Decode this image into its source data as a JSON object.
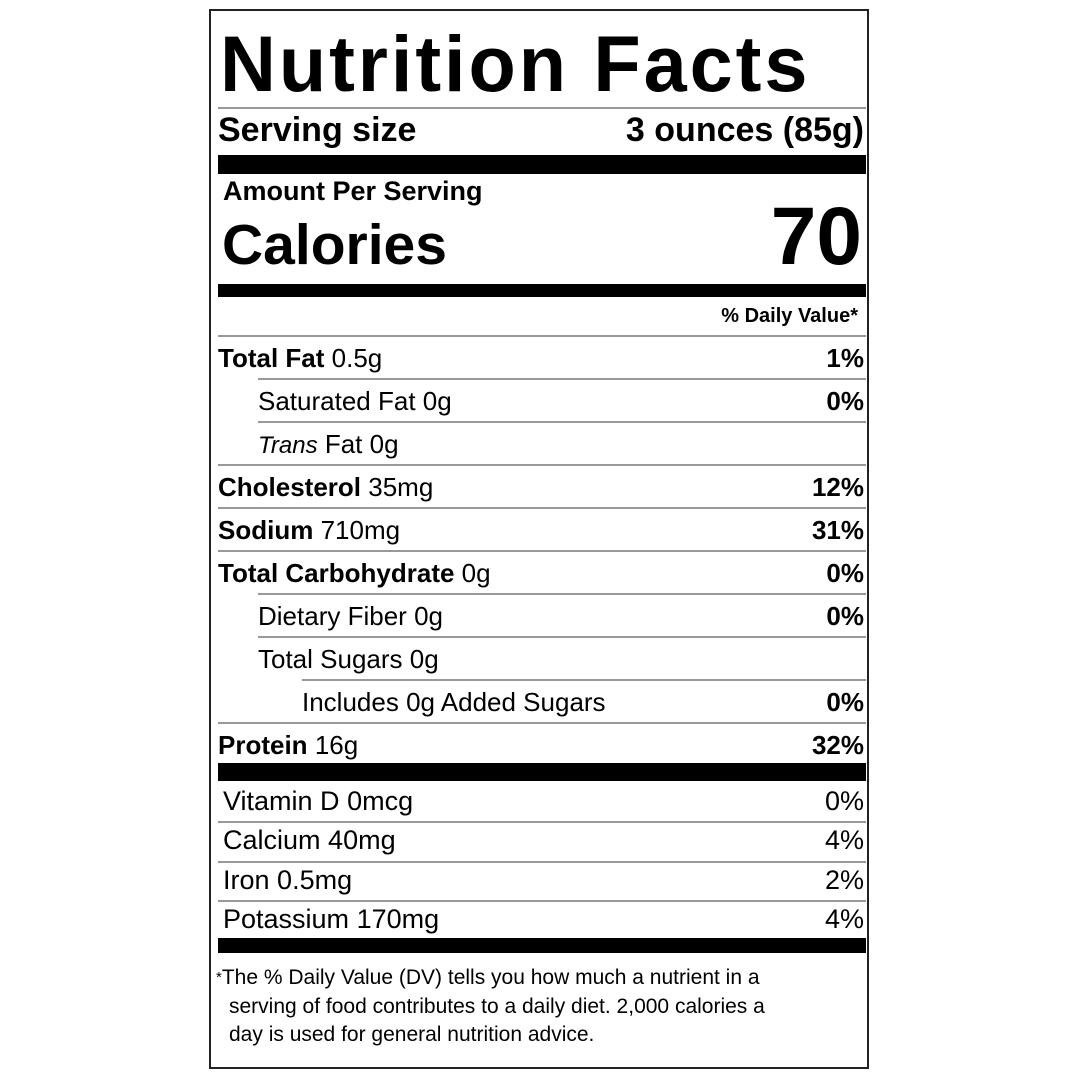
{
  "title": "Nutrition Facts",
  "serving": {
    "label": "Serving size",
    "value": "3 ounces (85g)"
  },
  "amount_per_serving": "Amount Per Serving",
  "calories": {
    "label": "Calories",
    "value": "70"
  },
  "daily_value_header": "% Daily Value*",
  "nutrients": [
    {
      "name": "Total Fat",
      "amount": "0.5g",
      "dv": "1%",
      "bold": true,
      "indent": 0
    },
    {
      "name": "Saturated Fat",
      "amount": "0g",
      "dv": "0%",
      "bold": false,
      "indent": 1
    },
    {
      "name": "Trans",
      "name_suffix": "Fat",
      "amount": "0g",
      "dv": "",
      "bold": false,
      "indent": 1,
      "italic": true
    },
    {
      "name": "Cholesterol",
      "amount": "35mg",
      "dv": "12%",
      "bold": true,
      "indent": 0
    },
    {
      "name": "Sodium",
      "amount": "710mg",
      "dv": "31%",
      "bold": true,
      "indent": 0
    },
    {
      "name": "Total Carbohydrate",
      "amount": "0g",
      "dv": "0%",
      "bold": true,
      "indent": 0
    },
    {
      "name": "Dietary Fiber",
      "amount": "0g",
      "dv": "0%",
      "bold": false,
      "indent": 1
    },
    {
      "name": "Total Sugars",
      "amount": "0g",
      "dv": "",
      "bold": false,
      "indent": 1
    },
    {
      "name": "Includes 0g Added Sugars",
      "amount": "",
      "dv": "0%",
      "bold": false,
      "indent": 2
    },
    {
      "name": "Protein",
      "amount": "16g",
      "dv": "32%",
      "bold": true,
      "indent": 0
    }
  ],
  "vitamins": [
    {
      "name": "Vitamin D",
      "amount": "0mcg",
      "dv": "0%"
    },
    {
      "name": "Calcium",
      "amount": "40mg",
      "dv": "4%"
    },
    {
      "name": "Iron",
      "amount": "0.5mg",
      "dv": "2%"
    },
    {
      "name": "Potassium",
      "amount": "170mg",
      "dv": "4%"
    }
  ],
  "footnote": {
    "asterisk": "*",
    "lines": [
      "The % Daily Value (DV) tells you how much a nutrient in a",
      "serving of food contributes to a daily diet. 2,000 calories a",
      "day is used for general nutrition advice."
    ]
  }
}
